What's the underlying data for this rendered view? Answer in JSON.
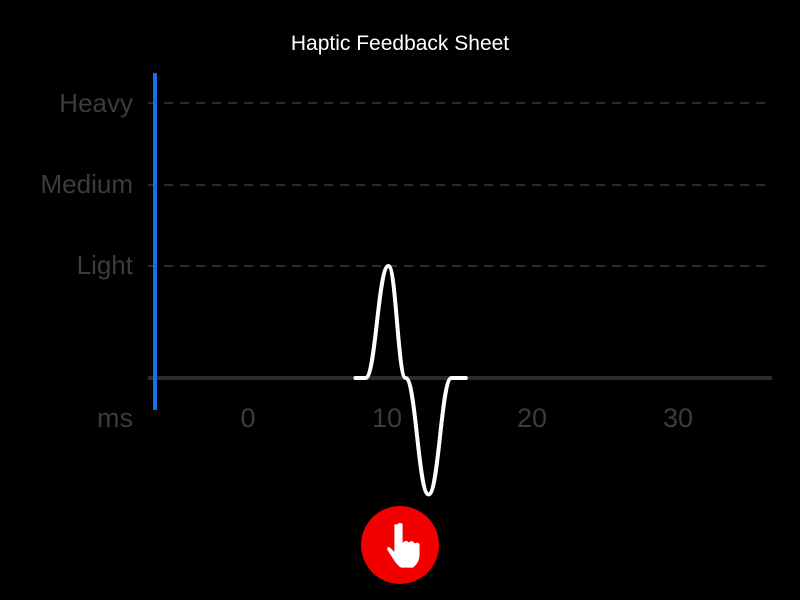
{
  "title": "Haptic Feedback Sheet",
  "chart_data": {
    "type": "line",
    "title": "Haptic Feedback Sheet",
    "xlabel": "ms",
    "x_ticks": [
      "0",
      "10",
      "20",
      "30"
    ],
    "y_ticks": [
      "Light",
      "Medium",
      "Heavy"
    ],
    "grid": "dashed horizontal",
    "series": [
      {
        "color": "#ffffff",
        "points": [
          [
            7.5,
            0
          ],
          [
            8.2,
            0
          ],
          [
            9.8,
            1
          ],
          [
            11.0,
            0
          ],
          [
            12.6,
            -1.04
          ],
          [
            14.2,
            0
          ],
          [
            15.2,
            0
          ]
        ]
      }
    ],
    "playhead_color": "#1a6fe8"
  },
  "button": {
    "icon": "hand-pointer-icon",
    "color": "#f20000"
  }
}
